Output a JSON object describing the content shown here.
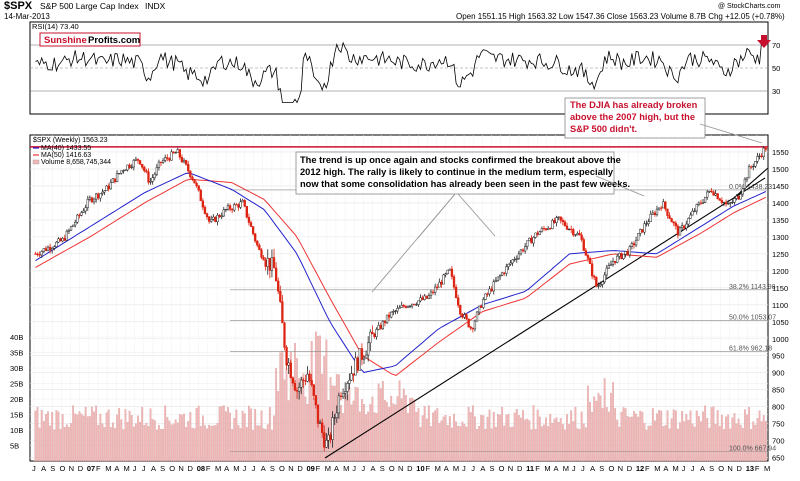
{
  "header": {
    "symbol": "$SPX",
    "name": "S&P 500 Large Cap Index",
    "exchange": "INDX",
    "date": "14-Mar-2013",
    "copyright": "@ StockCharts.com",
    "quote": "Open 1551.15   High 1563.32   Low 1547.36   Close 1563.23   Volume 8.7B   Chg +12.05 (+0.78%)",
    "quote_arrow": "▲"
  },
  "rsi": {
    "label": "RSI(14) 73.40",
    "levels": [
      30,
      50,
      70
    ],
    "yticks": [
      "70",
      "50",
      "30"
    ],
    "brand_part1": "Sunshine",
    "brand_part2": "Profits.com"
  },
  "legend": {
    "price": "$SPX (Weekly) 1563.23",
    "ma40": "MA(40) 1433.55",
    "ma50": "MA(50) 1416.63",
    "volume": "Volume 8,658,745,344"
  },
  "annotations": {
    "trend_lines": [
      "The trend is up once again and stocks confirmed the breakout above the",
      "2012 high. The rally is likely to continue in the medium term, especially",
      "now that some consolidation has already been seen in the past few weeks."
    ],
    "djia_lines": [
      "The DJIA has already broken",
      "above the 2007 high, but the",
      "S&P 500 didn't."
    ]
  },
  "chart_data": {
    "type": "line",
    "title": "$SPX S&P 500 Large Cap Index INDX",
    "price_axis": {
      "ticks": [
        650,
        700,
        750,
        800,
        850,
        900,
        950,
        1000,
        1050,
        1100,
        1150,
        1200,
        1250,
        1300,
        1350,
        1400,
        1450,
        1500,
        1550
      ],
      "range": [
        640,
        1600
      ]
    },
    "volume_axis": {
      "ticks": [
        "5B",
        "10B",
        "15B",
        "20B",
        "25B",
        "30B",
        "35B",
        "40B"
      ],
      "values": [
        5,
        10,
        15,
        20,
        25,
        30,
        35,
        40
      ]
    },
    "x_axis_labels": [
      "J",
      "A",
      "S",
      "O",
      "N",
      "D",
      "07",
      "F",
      "M",
      "A",
      "M",
      "J",
      "J",
      "A",
      "S",
      "O",
      "N",
      "D",
      "08",
      "F",
      "M",
      "A",
      "M",
      "J",
      "J",
      "A",
      "S",
      "O",
      "N",
      "D",
      "09",
      "F",
      "M",
      "A",
      "M",
      "J",
      "J",
      "A",
      "S",
      "O",
      "N",
      "D",
      "10",
      "F",
      "M",
      "A",
      "M",
      "J",
      "J",
      "A",
      "S",
      "O",
      "N",
      "D",
      "11",
      "F",
      "M",
      "A",
      "M",
      "J",
      "J",
      "A",
      "S",
      "O",
      "N",
      "D",
      "12",
      "F",
      "M",
      "A",
      "M",
      "J",
      "J",
      "A",
      "S",
      "O",
      "N",
      "D",
      "13",
      "F",
      "M"
    ],
    "fib_levels": [
      {
        "label": "0.0%",
        "value": 1438.23
      },
      {
        "label": "38.2%",
        "value": 1143.98
      },
      {
        "label": "50.0%",
        "value": 1053.07
      },
      {
        "label": "61.8%",
        "value": 962.18
      },
      {
        "label": "100.0%",
        "value": 667.94
      }
    ],
    "resistance_2007_high": 1565,
    "series": [
      {
        "name": "$SPX (Weekly)",
        "x": [
          2006.5,
          2006.75,
          2007.0,
          2007.15,
          2007.3,
          2007.45,
          2007.55,
          2007.65,
          2007.8,
          2007.95,
          2008.1,
          2008.25,
          2008.4,
          2008.55,
          2008.7,
          2008.8,
          2008.9,
          2009.0,
          2009.1,
          2009.18,
          2009.3,
          2009.45,
          2009.6,
          2009.75,
          2009.9,
          2010.1,
          2010.3,
          2010.4,
          2010.5,
          2010.6,
          2010.75,
          2010.9,
          2011.1,
          2011.3,
          2011.5,
          2011.65,
          2011.8,
          2011.95,
          2012.1,
          2012.25,
          2012.4,
          2012.55,
          2012.7,
          2012.85,
          2012.95,
          2013.05,
          2013.2
        ],
        "values": [
          1250,
          1290,
          1410,
          1440,
          1500,
          1530,
          1460,
          1520,
          1550,
          1470,
          1340,
          1380,
          1400,
          1260,
          1200,
          950,
          850,
          900,
          750,
          680,
          850,
          930,
          1010,
          1070,
          1100,
          1120,
          1200,
          1080,
          1030,
          1110,
          1180,
          1240,
          1310,
          1350,
          1300,
          1150,
          1230,
          1260,
          1340,
          1400,
          1310,
          1380,
          1440,
          1390,
          1420,
          1500,
          1563
        ]
      },
      {
        "name": "MA(40)",
        "x": [
          2006.5,
          2007.0,
          2007.5,
          2007.9,
          2008.3,
          2008.6,
          2008.9,
          2009.2,
          2009.5,
          2009.8,
          2010.2,
          2010.6,
          2011.0,
          2011.4,
          2011.8,
          2012.2,
          2012.6,
          2012.9,
          2013.2
        ],
        "values": [
          1230,
          1330,
          1430,
          1490,
          1440,
          1380,
          1250,
          1050,
          900,
          920,
          1030,
          1100,
          1140,
          1250,
          1260,
          1250,
          1330,
          1390,
          1433.55
        ]
      },
      {
        "name": "MA(50)",
        "x": [
          2006.5,
          2007.0,
          2007.5,
          2007.9,
          2008.3,
          2008.6,
          2008.9,
          2009.2,
          2009.5,
          2009.8,
          2010.2,
          2010.6,
          2011.0,
          2011.4,
          2011.8,
          2012.2,
          2012.6,
          2012.9,
          2013.2
        ],
        "values": [
          1210,
          1300,
          1400,
          1470,
          1460,
          1410,
          1300,
          1120,
          950,
          890,
          990,
          1080,
          1120,
          1220,
          1250,
          1240,
          1310,
          1370,
          1416.63
        ]
      }
    ]
  }
}
